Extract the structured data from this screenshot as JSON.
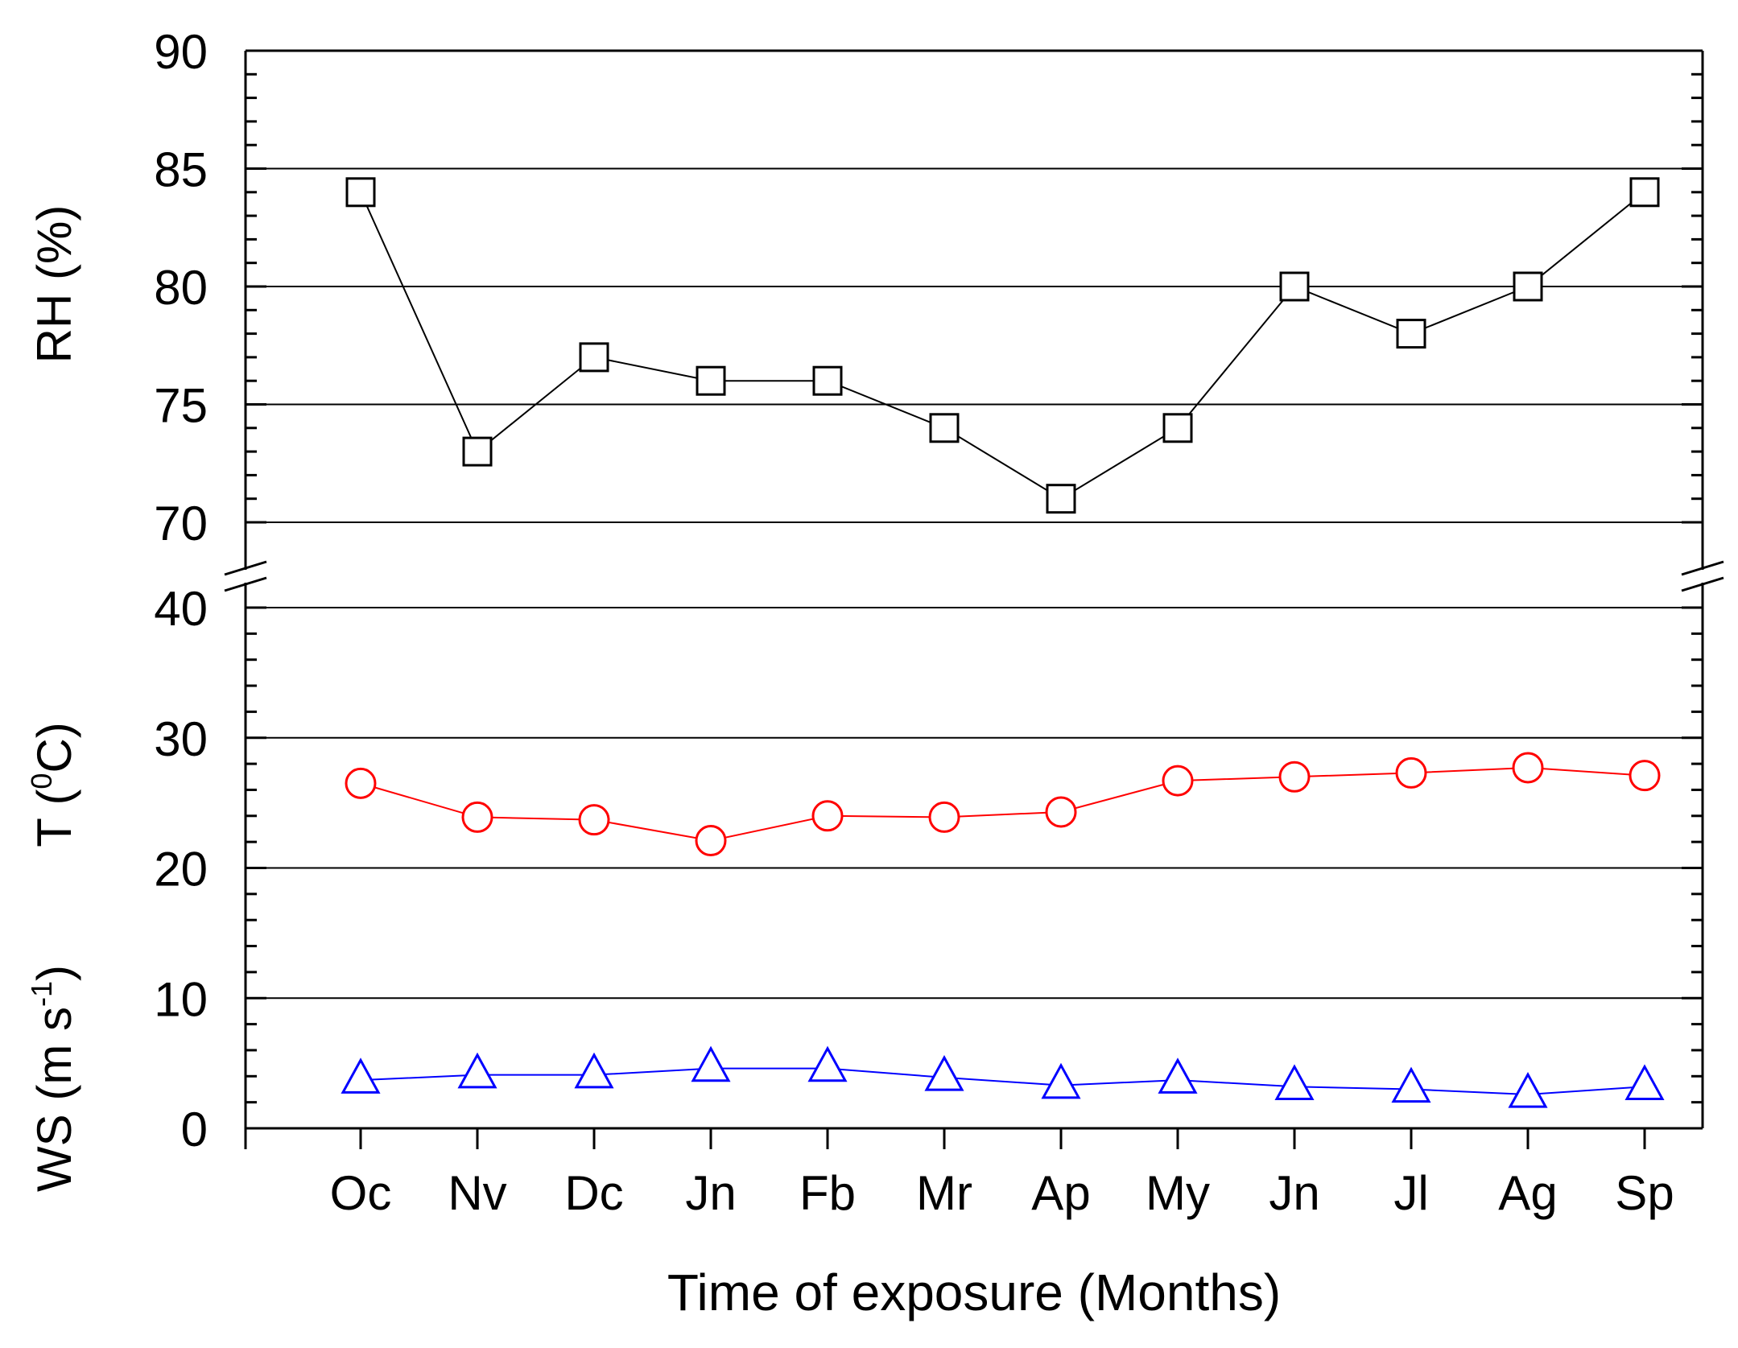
{
  "chart_data": {
    "type": "line",
    "xlabel": "Time of exposure (Months)",
    "categories": [
      "Oc",
      "Nv",
      "Dc",
      "Jn",
      "Fb",
      "Mr",
      "Ap",
      "My",
      "Jn",
      "Jl",
      "Ag",
      "Sp"
    ],
    "panels": [
      {
        "id": "rh",
        "ylabel": "RH (%)",
        "ylim": [
          70,
          90
        ],
        "yticks": [
          "70",
          "75",
          "80",
          "85",
          "90"
        ],
        "grid_values": [
          70,
          75,
          80,
          85
        ],
        "series": [
          {
            "name": "RH",
            "marker": "square",
            "color": "#000000",
            "values": [
              84,
              73,
              77,
              76,
              76,
              74,
              71,
              74,
              80,
              78,
              80,
              84
            ]
          }
        ]
      },
      {
        "id": "tws",
        "ylabel_t": "T (",
        "ylabel_t_sup": "0",
        "ylabel_t_end": "C)",
        "ylabel_ws": "WS (m s",
        "ylabel_ws_sup": "-1",
        "ylabel_ws_end": ")",
        "ylim": [
          0,
          40
        ],
        "yticks": [
          "0",
          "10",
          "20",
          "30",
          "40"
        ],
        "grid_values": [
          10,
          20,
          30,
          40
        ],
        "series": [
          {
            "name": "T",
            "marker": "circle",
            "color": "#ff0000",
            "values": [
              26.5,
              23.9,
              23.7,
              22.1,
              24.0,
              23.9,
              24.3,
              26.7,
              27.0,
              27.3,
              27.7,
              27.1
            ]
          },
          {
            "name": "WS",
            "marker": "triangle",
            "color": "#0000ff",
            "values": [
              3.7,
              4.1,
              4.1,
              4.6,
              4.6,
              3.9,
              3.3,
              3.7,
              3.2,
              3.0,
              2.6,
              3.2
            ]
          }
        ]
      }
    ]
  }
}
